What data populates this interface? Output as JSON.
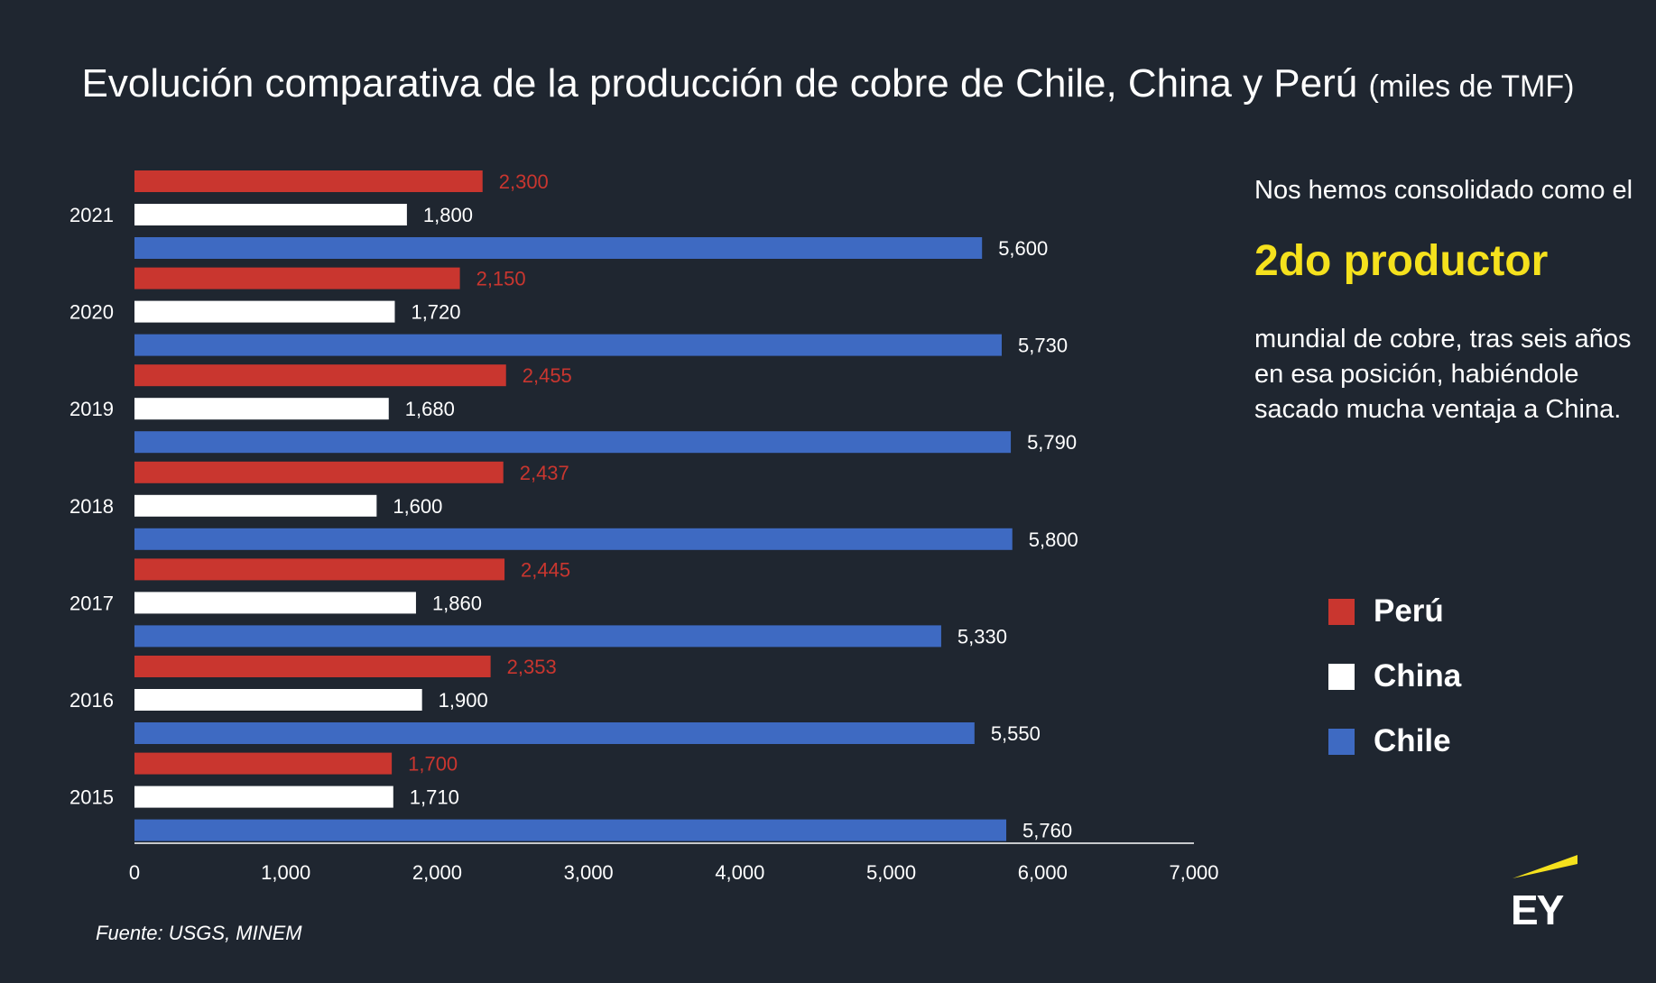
{
  "title": "Evolución comparativa de la producción de cobre de Chile, China y Perú",
  "title_unit": "(miles de TMF)",
  "side_text": {
    "line1": "Nos hemos consolidado como el",
    "highlight": "2do productor",
    "line2": "mundial de cobre, tras seis años en esa posición, habiéndole sacado mucha ventaja a China."
  },
  "source": "Fuente: USGS, MINEM",
  "logo_text": "EY",
  "colors": {
    "peru": "#c9362f",
    "china": "#ffffff",
    "chile": "#3e6ac2",
    "highlight": "#f5e11d",
    "logo_accent": "#f5e11d"
  },
  "legend": [
    {
      "label": "Perú",
      "color": "#c9362f"
    },
    {
      "label": "China",
      "color": "#ffffff"
    },
    {
      "label": "Chile",
      "color": "#3e6ac2"
    }
  ],
  "chart_data": {
    "type": "bar",
    "orientation": "horizontal",
    "categories": [
      "2021",
      "2020",
      "2019",
      "2018",
      "2017",
      "2016",
      "2015"
    ],
    "series": [
      {
        "name": "Perú",
        "values": [
          2300,
          2150,
          2455,
          2437,
          2445,
          2353,
          1700
        ],
        "labels": [
          "2,300",
          "2,150",
          "2,455",
          "2,437",
          "2,445",
          "2,353",
          "1,700"
        ]
      },
      {
        "name": "China",
        "values": [
          1800,
          1720,
          1680,
          1600,
          1860,
          1900,
          1710
        ],
        "labels": [
          "1,800",
          "1,720",
          "1,680",
          "1,600",
          "1,860",
          "1,900",
          "1,710"
        ]
      },
      {
        "name": "Chile",
        "values": [
          5600,
          5730,
          5790,
          5800,
          5330,
          5550,
          5760
        ],
        "labels": [
          "5,600",
          "5,730",
          "5,790",
          "5,800",
          "5,330",
          "5,550",
          "5,760"
        ]
      }
    ],
    "xlim": [
      0,
      7000
    ],
    "x_ticks": [
      0,
      1000,
      2000,
      3000,
      4000,
      5000,
      6000,
      7000
    ],
    "x_tick_labels": [
      "0",
      "1,000",
      "2,000",
      "3,000",
      "4,000",
      "5,000",
      "6,000",
      "7,000"
    ],
    "grid": false,
    "legend_position": "right"
  }
}
